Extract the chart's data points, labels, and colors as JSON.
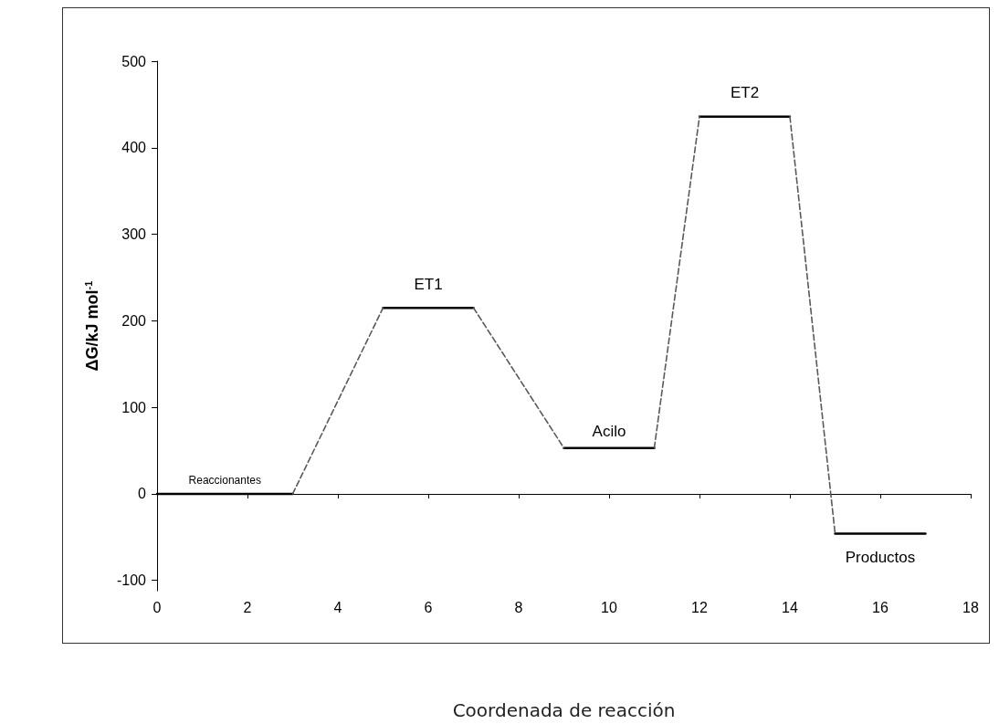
{
  "chart_data": {
    "type": "line",
    "xlabel": "Coordenada de reacción",
    "ylabel": "ΔG/kJ mol$^{-1}$",
    "xlim": [
      0,
      18
    ],
    "xticks": [
      0,
      2,
      4,
      6,
      8,
      10,
      12,
      14,
      16,
      18
    ],
    "ylim": [
      -112,
      500
    ],
    "yticks": [
      -100,
      0,
      100,
      200,
      300,
      400,
      500
    ],
    "marker": "none",
    "series": [
      {
        "color": "#000000",
        "line_style": "solid",
        "x": [
          0,
          3,
          4,
          5,
          7,
          8,
          9,
          11,
          11.5,
          12,
          14,
          14.5,
          15,
          17
        ],
        "values": [
          0,
          0,
          null,
          215,
          215,
          null,
          53,
          53,
          null,
          436,
          436,
          null,
          -46,
          -46
        ]
      },
      {
        "color": "#595959",
        "line_style": "dashed",
        "x": [
          3,
          5,
          6,
          7,
          9,
          10,
          11,
          12,
          13,
          14,
          15
        ],
        "values": [
          0,
          215,
          null,
          215,
          53,
          null,
          53,
          436,
          null,
          436,
          -46
        ]
      }
    ],
    "annotations": [
      {
        "text": "Reaccionantes",
        "x": 1.5,
        "y": 0
      },
      {
        "text": "ET1",
        "x": 6,
        "y": 215
      },
      {
        "text": "Acilo",
        "x": 10,
        "y": 53
      },
      {
        "text": "ET2",
        "x": 13,
        "y": 436
      },
      {
        "text": "Productos",
        "x": 16,
        "y": -46
      }
    ]
  }
}
